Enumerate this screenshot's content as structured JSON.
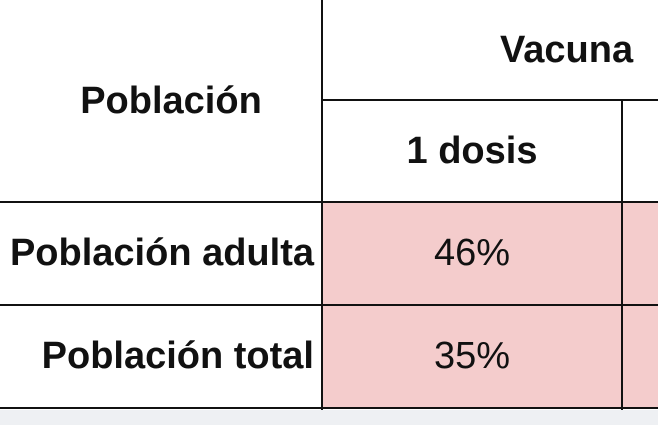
{
  "table": {
    "header": {
      "row_label": "Población",
      "group": "Vacuna",
      "sub": [
        "1 dosis"
      ]
    },
    "rows": [
      [
        "Población adulta",
        "46%"
      ],
      [
        "Población total",
        "35%"
      ]
    ]
  }
}
